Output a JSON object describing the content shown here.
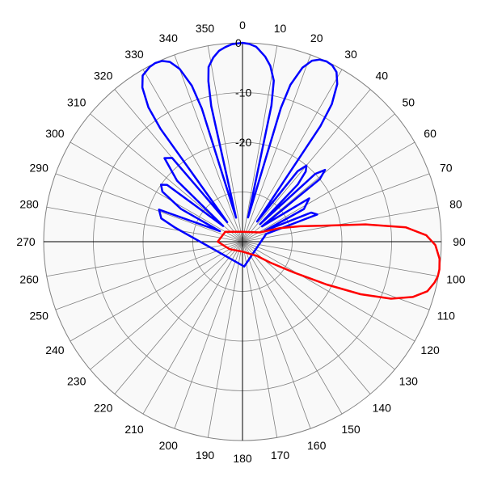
{
  "chart_data": {
    "type": "polar-line",
    "angle_labels": [
      "0",
      "10",
      "20",
      "30",
      "40",
      "50",
      "60",
      "70",
      "80",
      "90",
      "100",
      "110",
      "120",
      "130",
      "140",
      "150",
      "160",
      "170",
      "180",
      "190",
      "200",
      "210",
      "220",
      "230",
      "240",
      "250",
      "260",
      "270",
      "280",
      "290",
      "300",
      "310",
      "320",
      "330",
      "340",
      "350"
    ],
    "radial_labels": [
      "0",
      "-10",
      "-20"
    ],
    "rlim": [
      -40,
      0
    ],
    "grid": true,
    "colors": {
      "background": "#f9f9f9",
      "grid": "#808080",
      "axis": "#000000"
    },
    "series": [
      {
        "color": "#0000ff",
        "points": [
          [
            0,
            0
          ],
          [
            2,
            -0.2
          ],
          [
            4,
            -0.7
          ],
          [
            5,
            -1.3
          ],
          [
            7,
            -2.5
          ],
          [
            9,
            -4.2
          ],
          [
            11,
            -7
          ],
          [
            12,
            -12
          ],
          [
            13,
            -35
          ],
          [
            16,
            -12
          ],
          [
            17,
            -7
          ],
          [
            19,
            -3
          ],
          [
            21,
            -1
          ],
          [
            23,
            -0.2
          ],
          [
            25,
            0
          ],
          [
            27,
            -0.2
          ],
          [
            29,
            -1
          ],
          [
            31,
            -3
          ],
          [
            33,
            -7
          ],
          [
            34,
            -12
          ],
          [
            36,
            -35
          ],
          [
            38,
            -22
          ],
          [
            40,
            -20
          ],
          [
            42,
            -21
          ],
          [
            44,
            -24
          ],
          [
            45,
            -35
          ],
          [
            47,
            -20
          ],
          [
            49,
            -18
          ],
          [
            51,
            -20
          ],
          [
            52,
            -35
          ],
          [
            57,
            -24
          ],
          [
            62,
            -26
          ],
          [
            64,
            -35
          ],
          [
            67,
            -25
          ],
          [
            70,
            -24
          ],
          [
            72,
            -35
          ],
          [
            176,
            -35
          ],
          [
            282,
            -26
          ],
          [
            286,
            -23
          ],
          [
            291,
            -22
          ],
          [
            295,
            -35
          ],
          [
            298,
            -26
          ],
          [
            302,
            -21
          ],
          [
            305,
            -20
          ],
          [
            307,
            -21
          ],
          [
            309,
            -35
          ],
          [
            313,
            -22
          ],
          [
            317,
            -17
          ],
          [
            320,
            -18
          ],
          [
            322,
            -35
          ],
          [
            324,
            -12
          ],
          [
            325,
            -7
          ],
          [
            327,
            -3
          ],
          [
            329,
            -1
          ],
          [
            332,
            -0.2
          ],
          [
            334,
            0
          ],
          [
            336,
            -0.2
          ],
          [
            338,
            -1
          ],
          [
            340,
            -3
          ],
          [
            342,
            -7
          ],
          [
            343,
            -12
          ],
          [
            345,
            -35
          ],
          [
            347,
            -12
          ],
          [
            348,
            -7
          ],
          [
            349,
            -4.2
          ],
          [
            351,
            -2.5
          ],
          [
            353,
            -1.3
          ],
          [
            355,
            -0.7
          ],
          [
            357,
            -0.2
          ],
          [
            360,
            0
          ]
        ]
      },
      {
        "color": "#ff0000",
        "points": [
          [
            62,
            -36
          ],
          [
            70,
            -32
          ],
          [
            75,
            -28
          ],
          [
            79,
            -23
          ],
          [
            82,
            -15
          ],
          [
            85,
            -7
          ],
          [
            88,
            -3
          ],
          [
            91,
            -1.2
          ],
          [
            95,
            -0.2
          ],
          [
            98,
            0
          ],
          [
            100,
            -0.1
          ],
          [
            102,
            -0.5
          ],
          [
            105,
            -1.5
          ],
          [
            108,
            -4
          ],
          [
            111,
            -8
          ],
          [
            114,
            -14
          ],
          [
            117,
            -21
          ],
          [
            121,
            -28
          ],
          [
            127,
            -33
          ],
          [
            135,
            -36
          ],
          [
            180,
            -38
          ],
          [
            240,
            -37
          ],
          [
            270,
            -35
          ],
          [
            300,
            -36
          ],
          [
            360,
            -38
          ],
          [
            422,
            -36
          ]
        ]
      }
    ]
  }
}
